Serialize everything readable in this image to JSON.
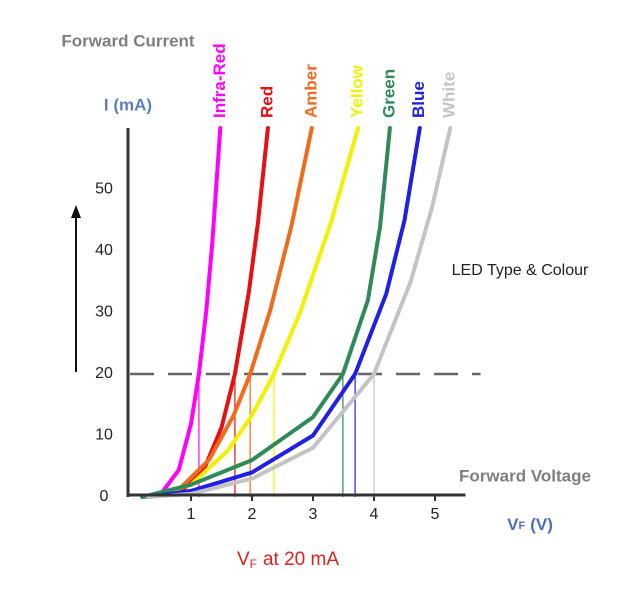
{
  "chart_data": {
    "type": "line",
    "y_label": "Forward Current",
    "y_unit": "I (mA)",
    "x_label": "Forward Voltage",
    "x_unit": {
      "symbol": "V",
      "subscript": "F",
      "unit": "(V)"
    },
    "legend_title": "LED Type & Colour",
    "annotation": {
      "symbol": "V",
      "subscript": "F",
      "text": "at 20 mA"
    },
    "threshold": 20,
    "xlim": [
      0,
      5.5
    ],
    "ylim": [
      0,
      60
    ],
    "xticks": [
      1,
      2,
      3,
      4,
      5
    ],
    "yticks": [
      0,
      10,
      20,
      30,
      40,
      50
    ],
    "grid": false,
    "series": [
      {
        "name": "Infra-Red",
        "color": "#ff00ff",
        "vf": 1.13,
        "x": [
          0.2,
          0.5,
          0.8,
          1.0,
          1.13,
          1.25,
          1.35,
          1.48
        ],
        "values": [
          0,
          0.4,
          4.4,
          11.9,
          20,
          30.3,
          41.5,
          60
        ]
      },
      {
        "name": "Red",
        "color": "#e81010",
        "vf": 1.72,
        "x": [
          0.3,
          0.8,
          1.2,
          1.5,
          1.72,
          1.95,
          2.1,
          2.26
        ],
        "values": [
          0,
          0.6,
          4.2,
          11.3,
          20,
          33.4,
          44.8,
          60
        ]
      },
      {
        "name": "Amber",
        "color": "#f26a1b",
        "vf": 1.97,
        "x": [
          0.3,
          0.8,
          1.3,
          1.7,
          1.97,
          2.3,
          2.65,
          2.98
        ],
        "values": [
          0,
          1.2,
          6.1,
          13.3,
          20,
          30.4,
          44.2,
          60
        ]
      },
      {
        "name": "Yellow",
        "color": "#f5f000",
        "vf": 2.36,
        "x": [
          0.3,
          1.0,
          1.6,
          2.0,
          2.36,
          2.8,
          3.3,
          3.74
        ],
        "values": [
          0,
          2.0,
          7.5,
          13.3,
          20,
          30.3,
          44.8,
          60
        ]
      },
      {
        "name": "Green",
        "color": "#2e8b57",
        "vf": 3.49,
        "x": [
          0.2,
          1.0,
          2.0,
          3.0,
          3.49,
          3.9,
          4.1,
          4.26
        ],
        "values": [
          0,
          2,
          6,
          13,
          20,
          32,
          44,
          60
        ]
      },
      {
        "name": "Blue",
        "color": "#1f1fe6",
        "vf": 3.69,
        "x": [
          0.3,
          1.0,
          2.0,
          3.0,
          3.69,
          4.2,
          4.5,
          4.75
        ],
        "values": [
          0,
          1,
          4,
          10,
          20,
          33,
          45,
          60
        ]
      },
      {
        "name": "White",
        "color": "#c4c4c4",
        "vf": 4.0,
        "x": [
          0.3,
          1.0,
          2.0,
          3.0,
          4.0,
          4.6,
          4.95,
          5.25
        ],
        "values": [
          0,
          0.5,
          3,
          8,
          20,
          35,
          47,
          60
        ]
      }
    ]
  }
}
